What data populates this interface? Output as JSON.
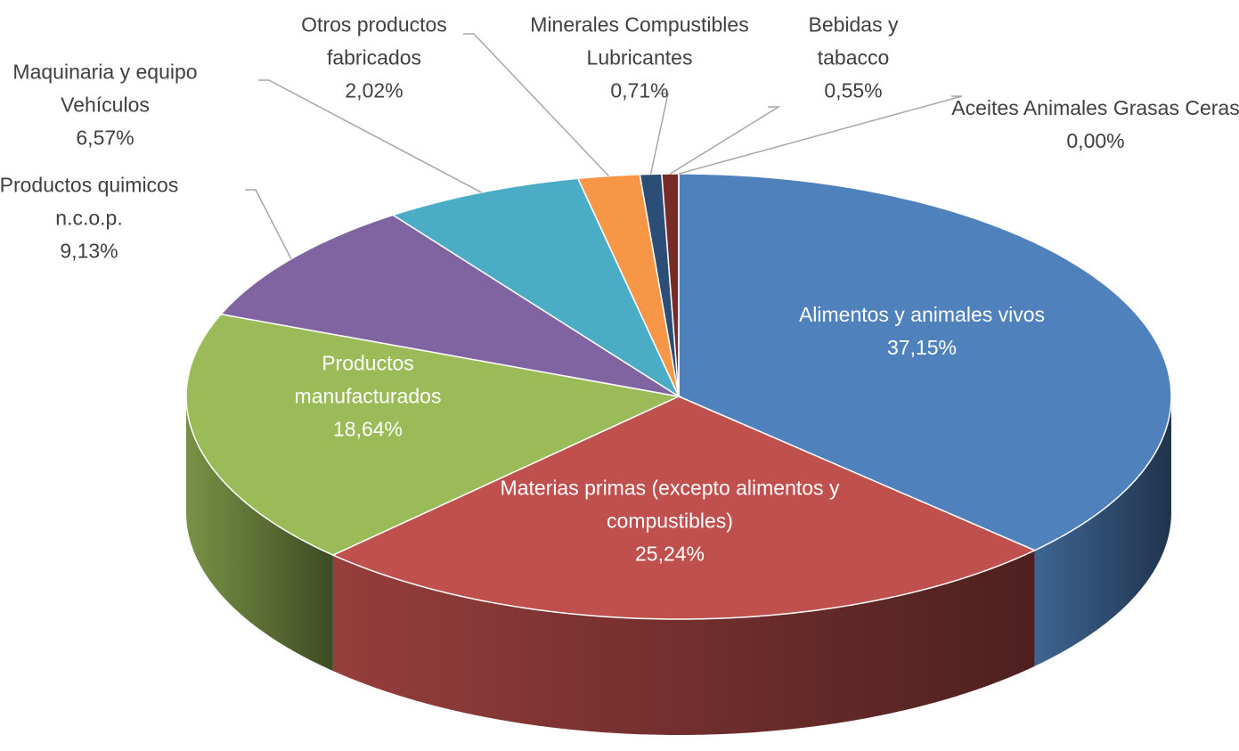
{
  "chart_data": {
    "type": "pie3d",
    "categories": [
      "Alimentos y animales vivos",
      "Materias primas (excepto alimentos y compustibles)",
      "Productos manufacturados",
      "Productos quimicos n.c.o.p.",
      "Maquinaria y equipo Vehículos",
      "Otros productos fabricados",
      "Minerales Compustibles Lubricantes",
      "Bebidas y tabacco",
      "Aceites Animales Grasas Ceras"
    ],
    "values": [
      37.15,
      25.24,
      18.64,
      9.13,
      6.57,
      2.02,
      0.71,
      0.55,
      0.0
    ],
    "value_labels": [
      "37,15%",
      "25,24%",
      "18,64%",
      "9,13%",
      "6,57%",
      "2,02%",
      "0,71%",
      "0,55%",
      "0,00%"
    ],
    "colors": [
      "#4f81bd",
      "#c0504d",
      "#9bbb59",
      "#8064a2",
      "#4bacc6",
      "#f79646",
      "#2c4d75",
      "#772c2a",
      "#5f7530"
    ]
  }
}
